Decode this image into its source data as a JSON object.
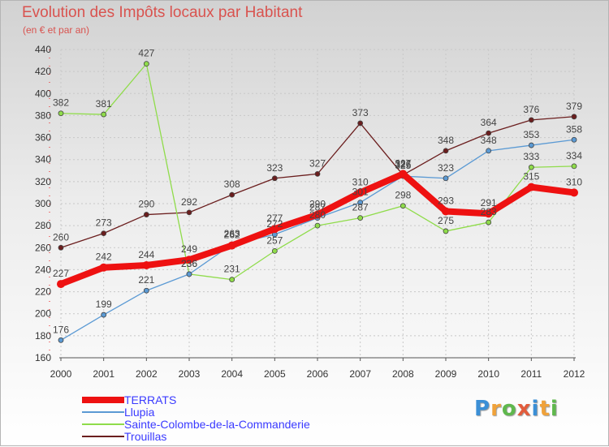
{
  "header": {
    "title": "Evolution des Impôts locaux par Habitant",
    "subtitle": "(en € et par an)"
  },
  "logo": {
    "text": "Proxiti",
    "letters": [
      "P",
      "r",
      "o",
      "x",
      "i",
      "t",
      "i"
    ],
    "colors": [
      "#3b8fd6",
      "#f0a23a",
      "#5fb84d",
      "#e25c3c",
      "#3b8fd6",
      "#f0a23a",
      "#5fb84d"
    ]
  },
  "chart_data": {
    "type": "line",
    "title": "Evolution des Impôts locaux par Habitant",
    "subtitle": "(en € et par an)",
    "xlabel": "",
    "ylabel": "",
    "categories": [
      "2000",
      "2001",
      "2002",
      "2003",
      "2004",
      "2005",
      "2006",
      "2007",
      "2008",
      "2009",
      "2010",
      "2011",
      "2012"
    ],
    "ylim": [
      160,
      440
    ],
    "yticks": [
      160,
      180,
      200,
      220,
      240,
      260,
      280,
      300,
      320,
      340,
      360,
      380,
      400,
      420,
      440
    ],
    "grid": true,
    "legend_position": "bottom-left",
    "series": [
      {
        "name": "Trouillas",
        "color": "#6b1e1e",
        "values": [
          260,
          273,
          290,
          292,
          308,
          323,
          327,
          373,
          326,
          348,
          364,
          376,
          379
        ]
      },
      {
        "name": "Sainte-Colombe-de-la-Commanderie",
        "color": "#8fdc4a",
        "values": [
          382,
          381,
          427,
          236,
          231,
          257,
          280,
          287,
          298,
          275,
          283,
          333,
          334
        ]
      },
      {
        "name": "Llupia",
        "color": "#5b9ad4",
        "values": [
          176,
          199,
          221,
          236,
          263,
          272,
          287,
          301,
          325,
          323,
          348,
          353,
          358
        ]
      },
      {
        "name": "TERRATS",
        "color": "#ee1111",
        "values": [
          227,
          242,
          244,
          249,
          262,
          277,
          290,
          310,
          327,
          293,
          291,
          315,
          310
        ]
      }
    ],
    "legend_order": [
      "TERRATS",
      "Llupia",
      "Sainte-Colombe-de-la-Commanderie",
      "Trouillas"
    ]
  }
}
